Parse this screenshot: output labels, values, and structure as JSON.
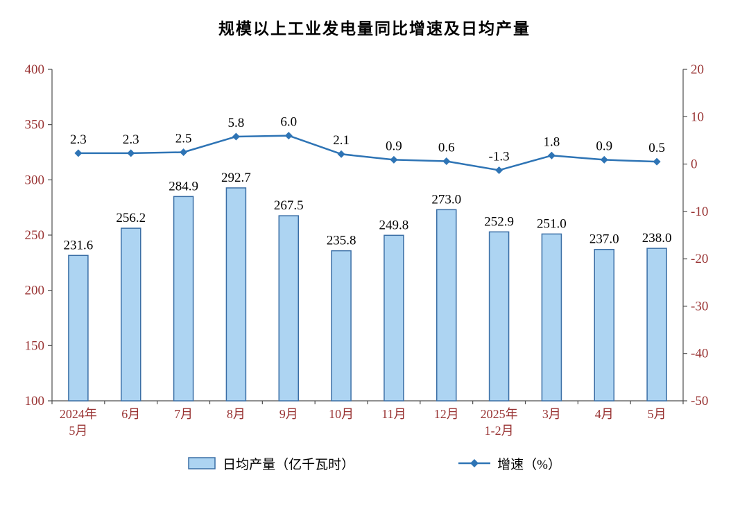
{
  "chart_data": {
    "type": "bar",
    "title": "规模以上工业发电量同比增速及日均产量",
    "categories": [
      [
        "2024年",
        "5月"
      ],
      [
        "6月"
      ],
      [
        "7月"
      ],
      [
        "8月"
      ],
      [
        "9月"
      ],
      [
        "10月"
      ],
      [
        "11月"
      ],
      [
        "12月"
      ],
      [
        "2025年",
        "1-2月"
      ],
      [
        "3月"
      ],
      [
        "4月"
      ],
      [
        "5月"
      ]
    ],
    "series": [
      {
        "name": "日均产量（亿千瓦时）",
        "type": "bar",
        "axis": "left",
        "values": [
          231.6,
          256.2,
          284.9,
          292.7,
          267.5,
          235.8,
          249.8,
          273.0,
          252.9,
          251.0,
          237.0,
          238.0
        ]
      },
      {
        "name": "增速（%）",
        "type": "line",
        "axis": "right",
        "values": [
          2.3,
          2.3,
          2.5,
          5.8,
          6.0,
          2.1,
          0.9,
          0.6,
          -1.3,
          1.8,
          0.9,
          0.5
        ]
      }
    ],
    "left_axis": {
      "min": 100,
      "max": 400,
      "step": 50,
      "ticks": [
        400,
        350,
        300,
        250,
        200,
        150,
        100
      ]
    },
    "right_axis": {
      "min": -50,
      "max": 20,
      "step": 10,
      "ticks": [
        20,
        10,
        0,
        -10,
        -20,
        -30,
        -40,
        -50
      ]
    },
    "grid": false,
    "legend_position": "bottom"
  },
  "colors": {
    "background": "#FFFFFF",
    "bar_fill": "#ADD4F2",
    "bar_stroke": "#3A6EA5",
    "line": "#2E74B5",
    "axis_text": "#993333",
    "data_label": "#000000",
    "axis_line": "#4D4D4D"
  }
}
